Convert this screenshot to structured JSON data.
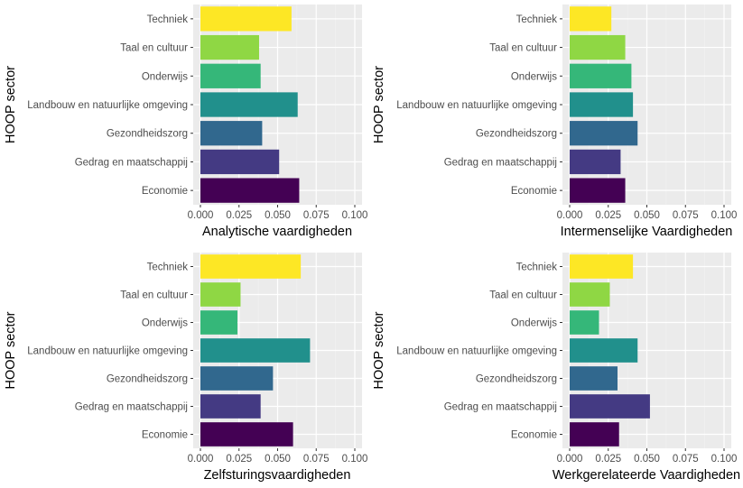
{
  "chart_data": [
    {
      "type": "bar",
      "orientation": "horizontal",
      "ylabel": "HOOP sector",
      "xlabel": "Analytische vaardigheden",
      "categories": [
        "Techniek",
        "Taal en cultuur",
        "Onderwijs",
        "Landbouw en natuurlijke omgeving",
        "Gezondheidszorg",
        "Gedrag en maatschappij",
        "Economie"
      ],
      "values": [
        0.059,
        0.038,
        0.039,
        0.063,
        0.04,
        0.051,
        0.064
      ],
      "xlim": [
        0,
        0.1
      ],
      "xticks": [
        "0.000",
        "0.025",
        "0.050",
        "0.075",
        "0.100"
      ],
      "grid": true
    },
    {
      "type": "bar",
      "orientation": "horizontal",
      "ylabel": "HOOP sector",
      "xlabel": "Intermenselijke Vaardigheden",
      "categories": [
        "Techniek",
        "Taal en cultuur",
        "Onderwijs",
        "Landbouw en natuurlijke omgeving",
        "Gezondheidszorg",
        "Gedrag en maatschappij",
        "Economie"
      ],
      "values": [
        0.027,
        0.036,
        0.04,
        0.041,
        0.044,
        0.033,
        0.036
      ],
      "xlim": [
        0,
        0.1
      ],
      "xticks": [
        "0.000",
        "0.025",
        "0.050",
        "0.075",
        "0.100"
      ],
      "grid": true
    },
    {
      "type": "bar",
      "orientation": "horizontal",
      "ylabel": "HOOP sector",
      "xlabel": "Zelfsturingsvaardigheden",
      "categories": [
        "Techniek",
        "Taal en cultuur",
        "Onderwijs",
        "Landbouw en natuurlijke omgeving",
        "Gezondheidszorg",
        "Gedrag en maatschappij",
        "Economie"
      ],
      "values": [
        0.065,
        0.026,
        0.024,
        0.071,
        0.047,
        0.039,
        0.06
      ],
      "xlim": [
        0,
        0.1
      ],
      "xticks": [
        "0.000",
        "0.025",
        "0.050",
        "0.075",
        "0.100"
      ],
      "grid": true
    },
    {
      "type": "bar",
      "orientation": "horizontal",
      "ylabel": "HOOP sector",
      "xlabel": "Werkgerelateerde Vaardigheden",
      "categories": [
        "Techniek",
        "Taal en cultuur",
        "Onderwijs",
        "Landbouw en natuurlijke omgeving",
        "Gezondheidszorg",
        "Gedrag en maatschappij",
        "Economie"
      ],
      "values": [
        0.041,
        0.026,
        0.019,
        0.044,
        0.031,
        0.052,
        0.032
      ],
      "xlim": [
        0,
        0.1
      ],
      "xticks": [
        "0.000",
        "0.025",
        "0.050",
        "0.075",
        "0.100"
      ],
      "grid": true
    }
  ],
  "colors": {
    "Techniek": "#FDE725",
    "Taal en cultuur": "#8FD744",
    "Onderwijs": "#35B779",
    "Landbouw en natuurlijke omgeving": "#21908C",
    "Gezondheidszorg": "#31688E",
    "Gedrag en maatschappij": "#443A83",
    "Economie": "#440154",
    "panel_background": "#EBEBEB",
    "grid_major": "#FFFFFF",
    "grid_minor": "#F4F4F4",
    "tick_text": "#4D4D4D",
    "axis_title": "#000000"
  }
}
